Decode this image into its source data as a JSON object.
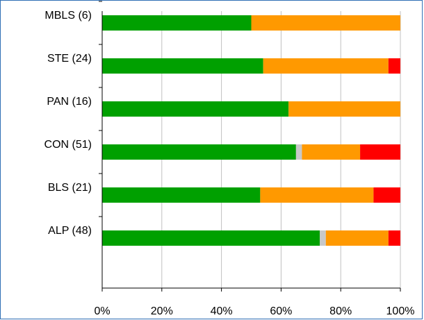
{
  "chart_data": {
    "type": "bar",
    "orientation": "horizontal",
    "stacked": true,
    "categories": [
      "MBLS (6)",
      "STE (24)",
      "PAN (16)",
      "CON (51)",
      "BLS (21)",
      "ALP (48)"
    ],
    "series": [
      {
        "color": "#00a000",
        "values": [
          50,
          54,
          62.5,
          65,
          53,
          73
        ]
      },
      {
        "color": "#c8c8c8",
        "values": [
          0,
          0,
          0,
          2,
          0,
          2
        ]
      },
      {
        "color": "#ff9900",
        "values": [
          50,
          42,
          37.5,
          19.5,
          38,
          21
        ]
      },
      {
        "color": "#ff0000",
        "values": [
          0,
          4,
          0,
          13.5,
          9,
          4
        ]
      }
    ],
    "xlim": [
      0,
      100
    ],
    "xticks": [
      "0%",
      "20%",
      "40%",
      "60%",
      "80%",
      "100%"
    ],
    "grid": true,
    "legend": "none"
  }
}
